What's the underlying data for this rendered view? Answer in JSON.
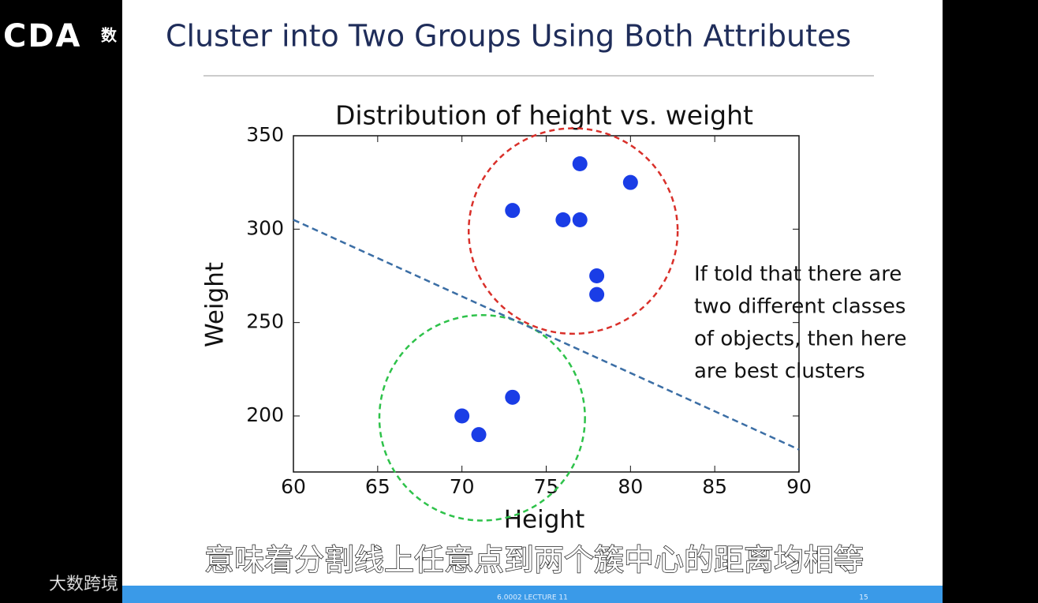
{
  "slide": {
    "title": "Cluster into Two Groups Using Both Attributes",
    "logo": "CDA",
    "logo_mark": "数",
    "watermark": "大数跨境",
    "subtitle": "意味着分割线上任意点到两个簇中心的距离均相等",
    "footer": "6.0002 LECTURE 11",
    "page_number": "15"
  },
  "chart_data": {
    "type": "scatter",
    "title": "Distribution of height vs. weight",
    "x_label": "Height",
    "y_label": "Weight",
    "xlim": [
      60,
      90
    ],
    "ylim": [
      170,
      350
    ],
    "xticks": [
      60,
      65,
      70,
      75,
      80,
      85,
      90
    ],
    "yticks": [
      200,
      250,
      300,
      350
    ],
    "series": [
      {
        "color": "#1a3de6",
        "x": [
          73,
          76,
          77,
          77,
          80,
          78,
          78,
          70,
          71,
          73
        ],
        "values": [
          310,
          305,
          305,
          335,
          325,
          275,
          265,
          200,
          190,
          210
        ]
      }
    ],
    "lines": [
      {
        "color": "#3b6ea5",
        "x": [
          60,
          90
        ],
        "values": [
          305,
          182
        ]
      }
    ],
    "circles": [
      {
        "color": "#d9302a",
        "cx": 76.6,
        "cy": 299,
        "rx": 6.2,
        "ry": 55
      },
      {
        "color": "#2ec24a",
        "cx": 71.2,
        "cy": 199,
        "rx": 6.1,
        "ry": 55
      }
    ],
    "annotation": [
      "If told that there are",
      "two different classes",
      "of objects, then here",
      "are best clusters"
    ]
  }
}
